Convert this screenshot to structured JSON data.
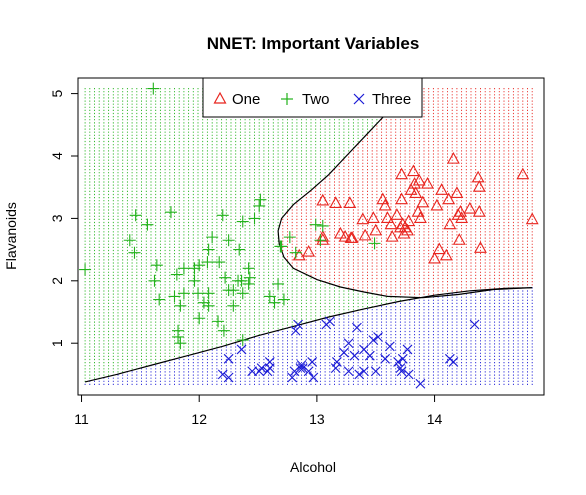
{
  "chart_data": {
    "type": "scatter",
    "title": "NNET: Important Variables",
    "xlabel": "Alcohol",
    "ylabel": "Flavanoids",
    "xlim": [
      10.97,
      14.93
    ],
    "ylim": [
      0.17,
      5.25
    ],
    "xticks": [
      "11",
      "12",
      "13",
      "14"
    ],
    "yticks": [
      "1",
      "2",
      "3",
      "4",
      "5"
    ],
    "legend": {
      "position": "top",
      "entries": [
        "One",
        "Two",
        "Three"
      ]
    },
    "colors": {
      "One": "#e8251f",
      "Two": "#22b21b",
      "Three": "#1b1bd6",
      "boundary": "#000000"
    },
    "region_grid": {
      "x_range": [
        11.03,
        14.83
      ],
      "y_range": [
        0.34,
        5.08
      ],
      "x_steps": 95,
      "y_steps": 95
    },
    "boundaries": {
      "lower": [
        [
          11.03,
          0.38
        ],
        [
          11.3,
          0.5
        ],
        [
          11.6,
          0.65
        ],
        [
          11.9,
          0.8
        ],
        [
          12.2,
          0.95
        ],
        [
          12.5,
          1.12
        ],
        [
          12.8,
          1.27
        ],
        [
          13.1,
          1.42
        ],
        [
          13.4,
          1.55
        ],
        [
          13.7,
          1.67
        ],
        [
          14.0,
          1.77
        ],
        [
          14.3,
          1.84
        ],
        [
          14.6,
          1.88
        ],
        [
          14.83,
          1.89
        ]
      ],
      "upper": [
        [
          14.83,
          1.89
        ],
        [
          14.5,
          1.86
        ],
        [
          14.2,
          1.78
        ],
        [
          13.9,
          1.73
        ],
        [
          13.6,
          1.75
        ],
        [
          13.4,
          1.82
        ],
        [
          13.2,
          1.9
        ],
        [
          13.0,
          2.02
        ],
        [
          12.8,
          2.2
        ],
        [
          12.72,
          2.38
        ],
        [
          12.68,
          2.6
        ],
        [
          12.67,
          2.8
        ],
        [
          12.7,
          3.0
        ],
        [
          12.8,
          3.22
        ],
        [
          12.95,
          3.45
        ],
        [
          13.1,
          3.7
        ],
        [
          13.25,
          4.0
        ],
        [
          13.4,
          4.3
        ],
        [
          13.55,
          4.6
        ],
        [
          13.7,
          4.9
        ],
        [
          13.85,
          5.08
        ]
      ]
    },
    "series": [
      {
        "name": "One",
        "marker": "triangle",
        "points": [
          [
            12.85,
            2.4
          ],
          [
            12.93,
            2.46
          ],
          [
            13.05,
            3.28
          ],
          [
            13.05,
            2.7
          ],
          [
            13.05,
            2.65
          ],
          [
            13.16,
            3.24
          ],
          [
            13.2,
            2.75
          ],
          [
            13.24,
            2.7
          ],
          [
            13.28,
            3.24
          ],
          [
            13.29,
            2.68
          ],
          [
            13.3,
            2.68
          ],
          [
            13.39,
            2.98
          ],
          [
            13.41,
            2.72
          ],
          [
            13.48,
            3.0
          ],
          [
            13.5,
            2.8
          ],
          [
            13.56,
            3.3
          ],
          [
            13.58,
            3.2
          ],
          [
            13.6,
            3.0
          ],
          [
            13.63,
            2.9
          ],
          [
            13.64,
            2.7
          ],
          [
            13.68,
            3.05
          ],
          [
            13.71,
            2.85
          ],
          [
            13.72,
            3.3
          ],
          [
            13.72,
            3.7
          ],
          [
            13.73,
            2.9
          ],
          [
            13.74,
            2.75
          ],
          [
            13.75,
            2.85
          ],
          [
            13.77,
            2.8
          ],
          [
            13.78,
            2.95
          ],
          [
            13.8,
            3.45
          ],
          [
            13.82,
            3.75
          ],
          [
            13.83,
            3.55
          ],
          [
            13.84,
            3.4
          ],
          [
            13.86,
            3.1
          ],
          [
            13.87,
            3.6
          ],
          [
            13.88,
            3.0
          ],
          [
            13.9,
            3.25
          ],
          [
            13.94,
            3.55
          ],
          [
            14.0,
            2.35
          ],
          [
            14.02,
            3.2
          ],
          [
            14.04,
            2.5
          ],
          [
            14.06,
            3.45
          ],
          [
            14.1,
            2.4
          ],
          [
            14.12,
            3.3
          ],
          [
            14.13,
            2.9
          ],
          [
            14.16,
            3.95
          ],
          [
            14.19,
            3.4
          ],
          [
            14.2,
            3.05
          ],
          [
            14.21,
            2.65
          ],
          [
            14.22,
            3.1
          ],
          [
            14.23,
            3.0
          ],
          [
            14.3,
            3.15
          ],
          [
            14.37,
            3.65
          ],
          [
            14.38,
            3.5
          ],
          [
            14.38,
            3.1
          ],
          [
            14.39,
            2.52
          ],
          [
            14.75,
            3.7
          ],
          [
            14.83,
            2.98
          ]
        ]
      },
      {
        "name": "Two",
        "marker": "plus",
        "points": [
          [
            11.03,
            2.18
          ],
          [
            11.41,
            2.65
          ],
          [
            11.45,
            2.45
          ],
          [
            11.46,
            3.05
          ],
          [
            11.56,
            2.9
          ],
          [
            11.61,
            5.08
          ],
          [
            11.62,
            2.0
          ],
          [
            11.64,
            2.25
          ],
          [
            11.66,
            1.7
          ],
          [
            11.76,
            3.1
          ],
          [
            11.79,
            1.75
          ],
          [
            11.81,
            2.1
          ],
          [
            11.82,
            1.1
          ],
          [
            11.82,
            1.2
          ],
          [
            11.84,
            1.6
          ],
          [
            11.84,
            1.0
          ],
          [
            11.87,
            2.2
          ],
          [
            11.87,
            1.8
          ],
          [
            11.96,
            2.2
          ],
          [
            11.96,
            2.0
          ],
          [
            11.99,
            1.8
          ],
          [
            12.0,
            2.25
          ],
          [
            12.0,
            1.4
          ],
          [
            12.04,
            1.65
          ],
          [
            12.07,
            2.3
          ],
          [
            12.08,
            2.5
          ],
          [
            12.08,
            1.8
          ],
          [
            12.08,
            1.6
          ],
          [
            12.11,
            2.7
          ],
          [
            12.16,
            1.35
          ],
          [
            12.17,
            2.3
          ],
          [
            12.2,
            3.05
          ],
          [
            12.21,
            1.2
          ],
          [
            12.22,
            2.05
          ],
          [
            12.25,
            2.65
          ],
          [
            12.25,
            1.85
          ],
          [
            12.29,
            1.6
          ],
          [
            12.29,
            1.85
          ],
          [
            12.33,
            2.0
          ],
          [
            12.34,
            2.5
          ],
          [
            12.36,
            2.0
          ],
          [
            12.37,
            1.05
          ],
          [
            12.37,
            1.8
          ],
          [
            12.37,
            2.95
          ],
          [
            12.42,
            2.2
          ],
          [
            12.42,
            1.95
          ],
          [
            12.43,
            2.05
          ],
          [
            12.47,
            3.0
          ],
          [
            12.51,
            3.2
          ],
          [
            12.52,
            3.3
          ],
          [
            12.6,
            1.75
          ],
          [
            12.64,
            1.65
          ],
          [
            12.67,
            1.95
          ],
          [
            12.69,
            2.55
          ],
          [
            12.7,
            2.55
          ],
          [
            12.72,
            1.7
          ],
          [
            12.77,
            2.7
          ],
          [
            12.82,
            2.45
          ],
          [
            12.99,
            2.9
          ],
          [
            13.03,
            2.65
          ],
          [
            13.05,
            2.88
          ],
          [
            13.49,
            2.6
          ]
        ]
      },
      {
        "name": "Three",
        "marker": "x",
        "points": [
          [
            12.2,
            0.5
          ],
          [
            12.25,
            0.45
          ],
          [
            12.25,
            0.75
          ],
          [
            12.36,
            0.9
          ],
          [
            12.45,
            0.55
          ],
          [
            12.51,
            0.55
          ],
          [
            12.53,
            0.6
          ],
          [
            12.58,
            0.55
          ],
          [
            12.6,
            0.6
          ],
          [
            12.6,
            0.7
          ],
          [
            12.79,
            0.45
          ],
          [
            12.81,
            0.55
          ],
          [
            12.82,
            1.2
          ],
          [
            12.84,
            1.3
          ],
          [
            12.86,
            0.6
          ],
          [
            12.87,
            0.65
          ],
          [
            12.88,
            0.6
          ],
          [
            12.93,
            0.55
          ],
          [
            12.96,
            0.7
          ],
          [
            12.97,
            0.45
          ],
          [
            13.08,
            1.3
          ],
          [
            13.11,
            1.35
          ],
          [
            13.16,
            0.6
          ],
          [
            13.17,
            0.7
          ],
          [
            13.23,
            0.85
          ],
          [
            13.27,
            1.0
          ],
          [
            13.27,
            0.55
          ],
          [
            13.32,
            0.8
          ],
          [
            13.34,
            1.25
          ],
          [
            13.36,
            0.5
          ],
          [
            13.4,
            0.9
          ],
          [
            13.4,
            0.55
          ],
          [
            13.45,
            0.8
          ],
          [
            13.48,
            1.05
          ],
          [
            13.5,
            0.55
          ],
          [
            13.52,
            1.1
          ],
          [
            13.58,
            0.75
          ],
          [
            13.62,
            0.95
          ],
          [
            13.69,
            0.7
          ],
          [
            13.71,
            0.6
          ],
          [
            13.72,
            0.55
          ],
          [
            13.73,
            0.75
          ],
          [
            13.77,
            0.9
          ],
          [
            13.78,
            0.5
          ],
          [
            13.88,
            0.35
          ],
          [
            14.13,
            0.75
          ],
          [
            14.16,
            0.7
          ],
          [
            14.34,
            1.3
          ]
        ]
      }
    ]
  }
}
